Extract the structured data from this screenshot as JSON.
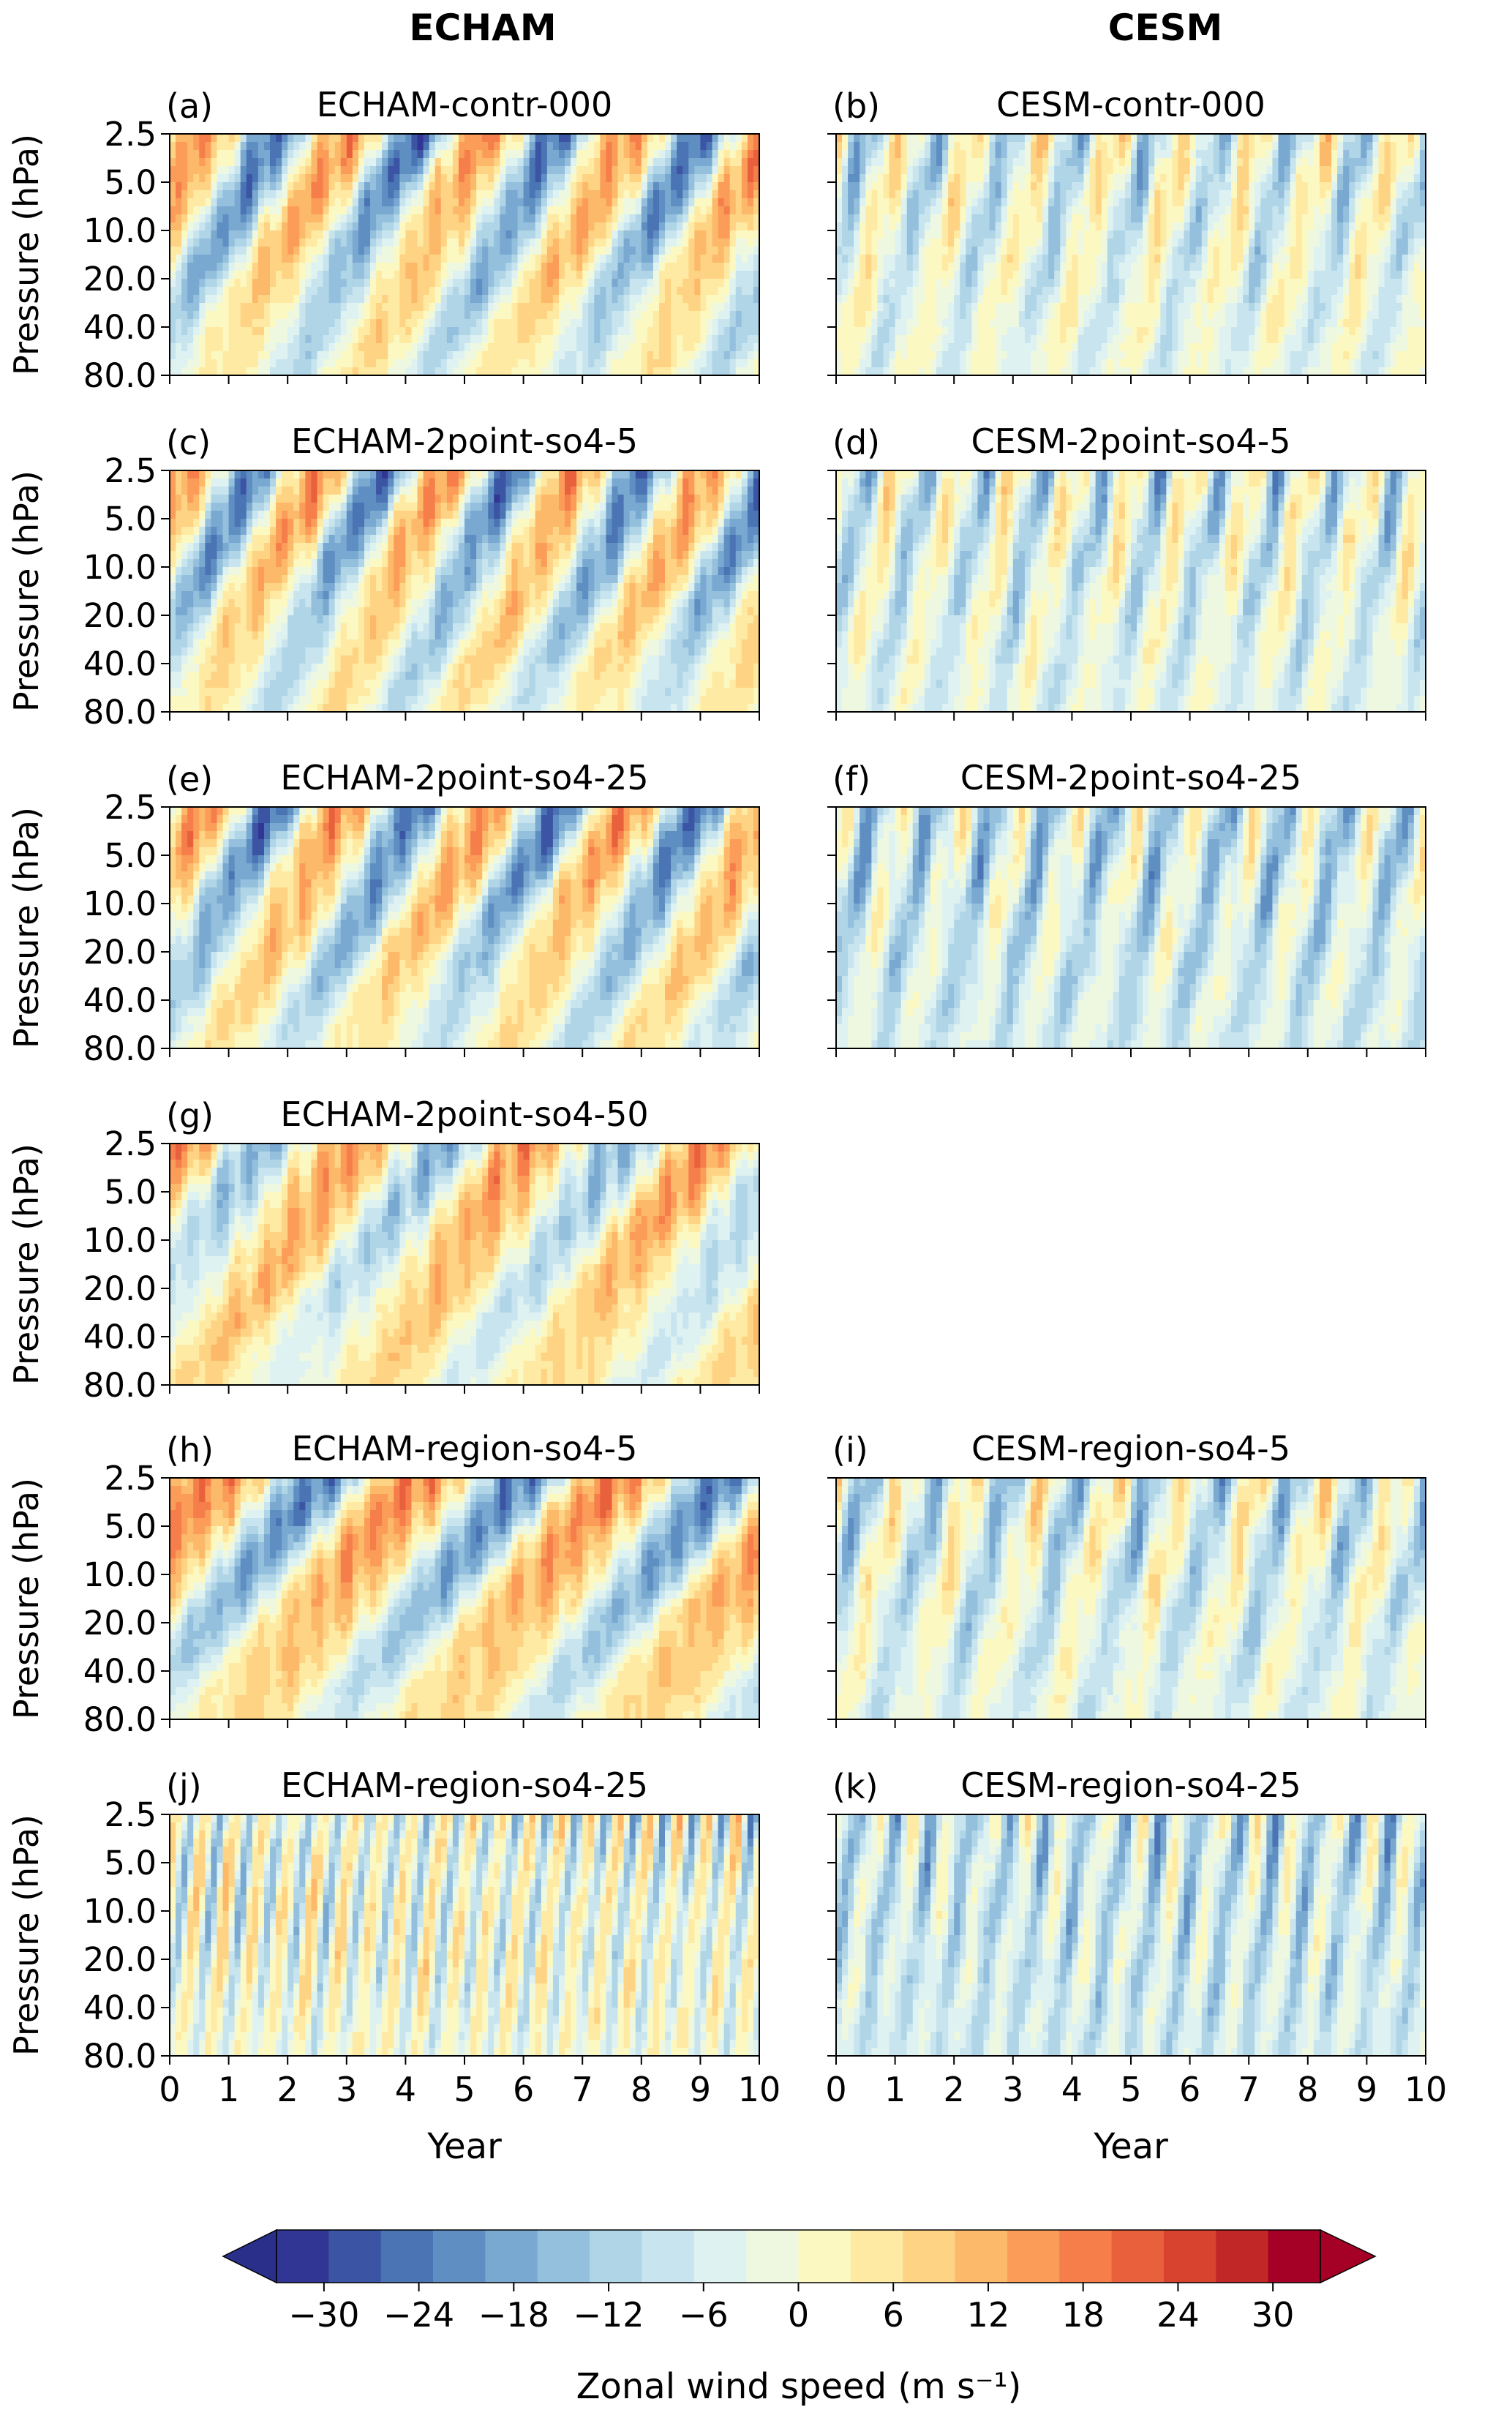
{
  "figure": {
    "column_titles": [
      "ECHAM",
      "CESM"
    ],
    "colorbar": {
      "label": "Zonal wind speed (m s⁻¹)",
      "ticks": [
        "−30",
        "−24",
        "−18",
        "−12",
        "−6",
        "0",
        "6",
        "12",
        "18",
        "24",
        "30"
      ],
      "tick_values": [
        -30,
        -24,
        -18,
        -12,
        -6,
        0,
        6,
        12,
        18,
        24,
        30
      ],
      "range": [
        -33,
        33
      ],
      "extend": "both",
      "colors": [
        "#313695",
        "#3b54a4",
        "#4a74b4",
        "#5f8fc2",
        "#79a8d1",
        "#94c0dd",
        "#afd5e7",
        "#c8e5ef",
        "#def2f2",
        "#eef8e0",
        "#fcf8c2",
        "#feeaa2",
        "#fed384",
        "#fdb96a",
        "#fb9d59",
        "#f57e4a",
        "#e8603c",
        "#d8432f",
        "#c22728",
        "#a50026"
      ],
      "under_color": "#2a2f8a",
      "over_color": "#a50026"
    }
  },
  "chart_data": [
    {
      "type": "contour",
      "panel": "(a)",
      "title": "ECHAM-contr-000",
      "xlabel": "",
      "ylabel": "Pressure (hPa)",
      "xlim": [
        0,
        10
      ],
      "yticks": [
        "2.5",
        "5.0",
        "10.0",
        "20.0",
        "40.0",
        "80.0"
      ],
      "period_years": 2.4,
      "phase": 0.0,
      "mean": 0,
      "amp_east": 16,
      "amp_west": 26
    },
    {
      "type": "contour",
      "panel": "(b)",
      "title": "CESM-contr-000",
      "xlabel": "",
      "ylabel": "",
      "xlim": [
        0,
        10
      ],
      "period_years": 1.2,
      "phase": 0.3,
      "mean": -2,
      "amp_east": 9,
      "amp_west": 15
    },
    {
      "type": "contour",
      "panel": "(c)",
      "title": "ECHAM-2point-so4-5",
      "xlabel": "",
      "ylabel": "Pressure (hPa)",
      "xlim": [
        0,
        10
      ],
      "yticks": [
        "2.5",
        "5.0",
        "10.0",
        "20.0",
        "40.0",
        "80.0"
      ],
      "period_years": 2.2,
      "phase": 0.1,
      "mean": 0,
      "amp_east": 16,
      "amp_west": 26
    },
    {
      "type": "contour",
      "panel": "(d)",
      "title": "CESM-2point-so4-5",
      "xlabel": "",
      "ylabel": "",
      "xlim": [
        0,
        10
      ],
      "period_years": 1.0,
      "phase": 0.2,
      "mean": -3,
      "amp_east": 9,
      "amp_west": 15
    },
    {
      "type": "contour",
      "panel": "(e)",
      "title": "ECHAM-2point-so4-25",
      "xlabel": "",
      "ylabel": "Pressure (hPa)",
      "xlim": [
        0,
        10
      ],
      "yticks": [
        "2.5",
        "5.0",
        "10.0",
        "20.0",
        "40.0",
        "80.0"
      ],
      "period_years": 2.4,
      "phase": 0.0,
      "mean": 0,
      "amp_east": 16,
      "amp_west": 26
    },
    {
      "type": "contour",
      "panel": "(f)",
      "title": "CESM-2point-so4-25",
      "xlabel": "",
      "ylabel": "",
      "xlim": [
        0,
        10
      ],
      "period_years": 1.0,
      "phase": 0.1,
      "mean": -5,
      "amp_east": 8,
      "amp_west": 16
    },
    {
      "type": "contour",
      "panel": "(g)",
      "title": "ECHAM-2point-so4-50",
      "xlabel": "",
      "ylabel": "Pressure (hPa)",
      "xlim": [
        0,
        10
      ],
      "yticks": [
        "2.5",
        "5.0",
        "10.0",
        "20.0",
        "40.0",
        "80.0"
      ],
      "period_years": 3.0,
      "phase": 0.2,
      "mean": 2,
      "amp_east": 14,
      "amp_west": 18
    },
    {
      "type": "contour",
      "panel": "(h)",
      "title": "ECHAM-region-so4-5",
      "xlabel": "",
      "ylabel": "Pressure (hPa)",
      "xlim": [
        0,
        10
      ],
      "yticks": [
        "2.5",
        "5.0",
        "10.0",
        "20.0",
        "40.0",
        "80.0"
      ],
      "period_years": 3.4,
      "phase": 0.0,
      "mean": 2,
      "amp_east": 16,
      "amp_west": 26
    },
    {
      "type": "contour",
      "panel": "(i)",
      "title": "CESM-region-so4-5",
      "xlabel": "",
      "ylabel": "",
      "xlim": [
        0,
        10
      ],
      "period_years": 1.2,
      "phase": 0.3,
      "mean": -3,
      "amp_east": 9,
      "amp_west": 15
    },
    {
      "type": "contour",
      "panel": "(j)",
      "title": "ECHAM-region-so4-25",
      "xlabel": "Year",
      "ylabel": "Pressure (hPa)",
      "xlim": [
        0,
        10
      ],
      "xticks": [
        "0",
        "1",
        "2",
        "3",
        "4",
        "5",
        "6",
        "7",
        "8",
        "9",
        "10"
      ],
      "yticks": [
        "2.5",
        "5.0",
        "10.0",
        "20.0",
        "40.0",
        "80.0"
      ],
      "period_years": 0.5,
      "phase": 0.0,
      "mean": 0,
      "amp_east": 10,
      "amp_west": 20
    },
    {
      "type": "contour",
      "panel": "(k)",
      "title": "CESM-region-so4-25",
      "xlabel": "Year",
      "ylabel": "",
      "xlim": [
        0,
        10
      ],
      "xticks": [
        "0",
        "1",
        "2",
        "3",
        "4",
        "5",
        "6",
        "7",
        "8",
        "9",
        "10"
      ],
      "period_years": 0.65,
      "phase": 0.2,
      "mean": -6,
      "amp_east": 8,
      "amp_west": 14
    }
  ]
}
